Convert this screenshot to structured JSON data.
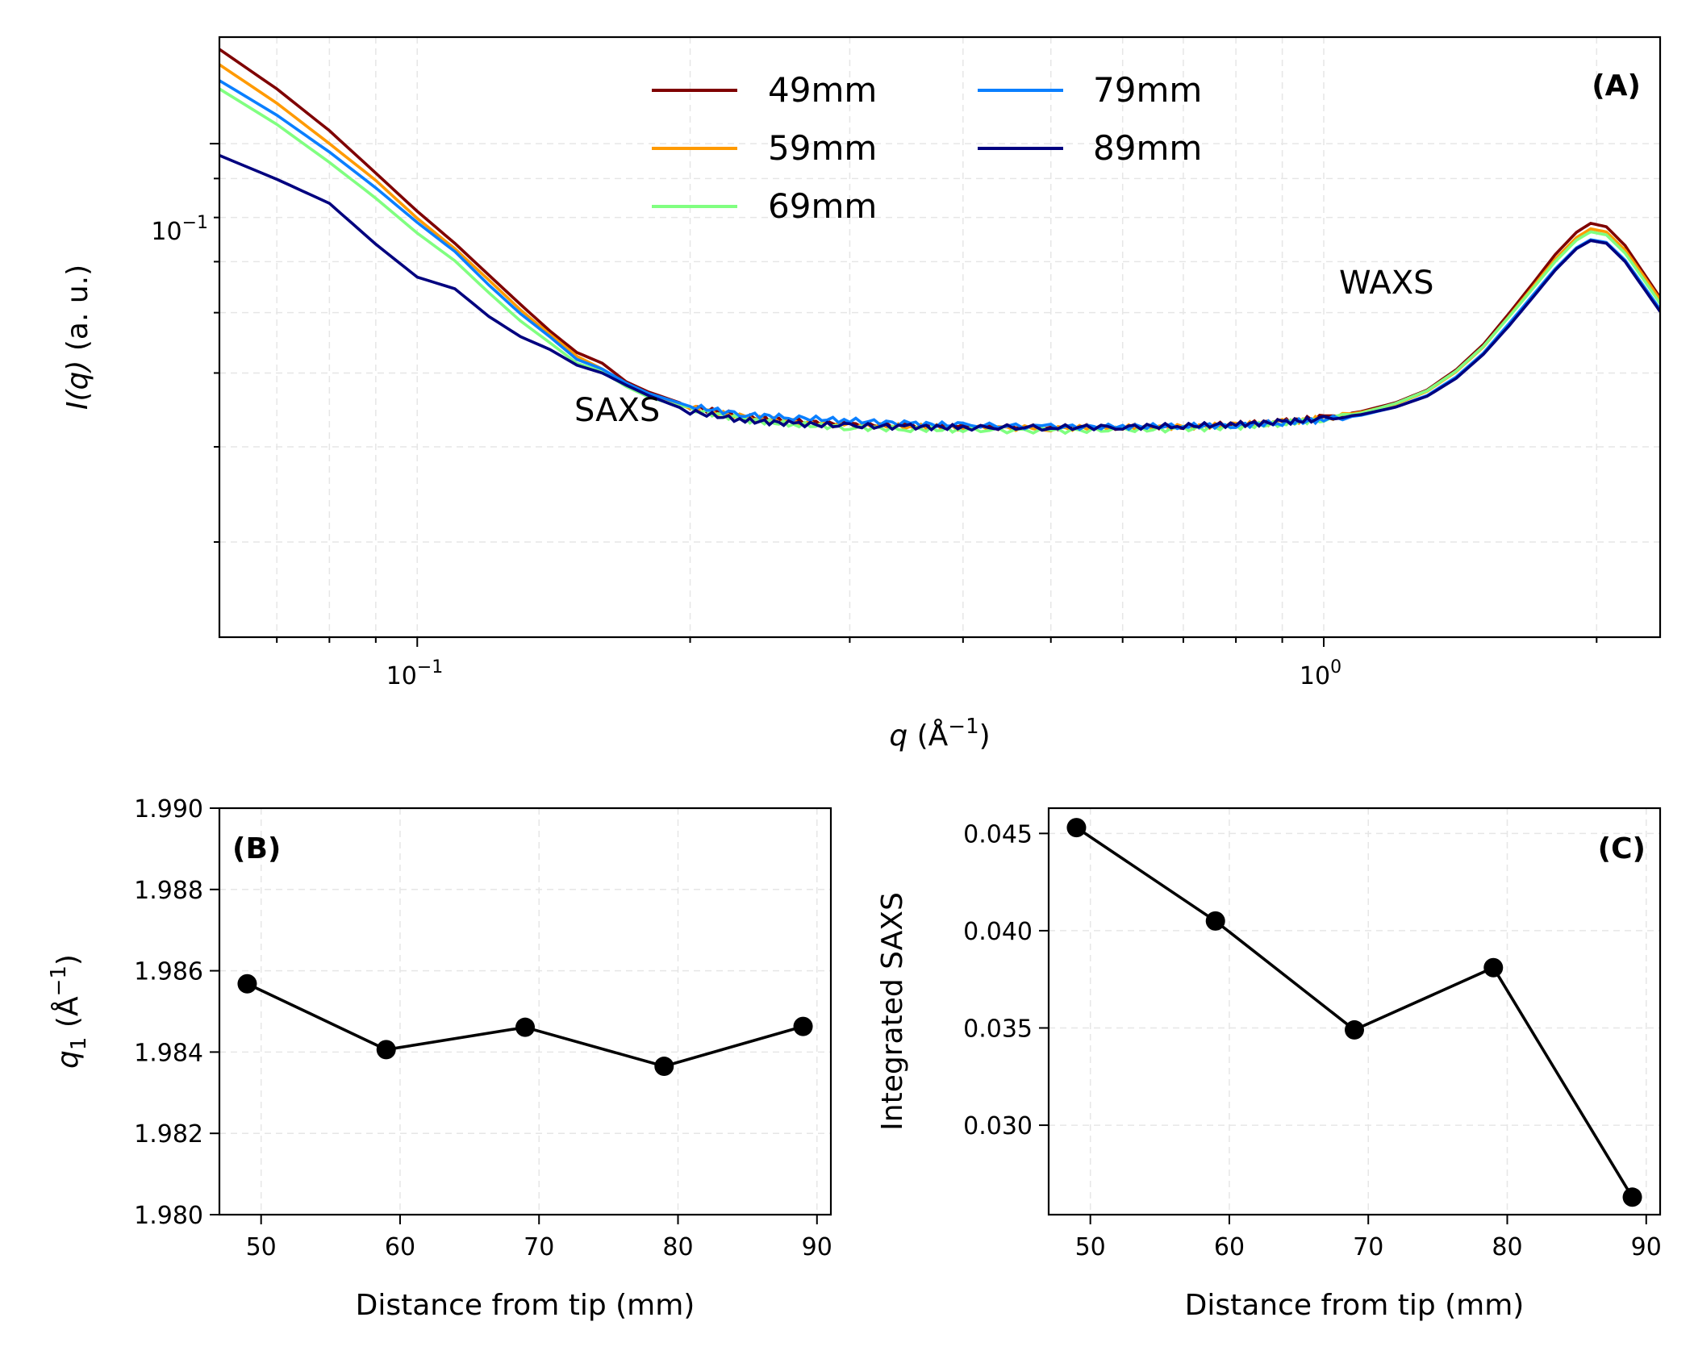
{
  "chart_data": [
    {
      "panel": "(A)",
      "type": "line",
      "xlabel_var": "q",
      "xlabel_unit": "(Å",
      "xlabel_unit_sup": "−1",
      "xlabel_close": ")",
      "ylabel_var": "I(q)",
      "ylabel_unit": "(a. u.)",
      "xscale": "log",
      "yscale": "log",
      "xlim": [
        0.0605,
        2.35
      ],
      "ylim": [
        0.0225,
        0.138
      ],
      "x_ticks": [
        {
          "base": "10",
          "exp": "−1",
          "value": 0.1
        },
        {
          "base": "10",
          "exp": "0",
          "value": 1.0
        }
      ],
      "y_ticks": [
        {
          "base": "10",
          "exp": "−1",
          "value": 0.1
        }
      ],
      "annotations": [
        {
          "text": "SAXS",
          "x": 0.145,
          "y": 0.0505
        },
        {
          "text": "WAXS",
          "x": 1.04,
          "y": 0.082
        }
      ],
      "grid": true,
      "legend": {
        "placement": "top-center",
        "columns": 2
      },
      "series": [
        {
          "name": "49mm",
          "color": "#7f0000",
          "x": [
            0.0605,
            0.07,
            0.08,
            0.09,
            0.1,
            0.11,
            0.12,
            0.13,
            0.14,
            0.15,
            0.16,
            0.17,
            0.18,
            0.2,
            0.23,
            0.26,
            0.3,
            0.35,
            0.4,
            0.5,
            0.6,
            0.7,
            0.8,
            0.9,
            1.0,
            1.1,
            1.2,
            1.3,
            1.4,
            1.5,
            1.6,
            1.7,
            1.8,
            1.9,
            1.97,
            2.05,
            2.15,
            2.25,
            2.35
          ],
          "y": [
            0.133,
            0.118,
            0.104,
            0.0915,
            0.0815,
            0.074,
            0.0672,
            0.0615,
            0.0568,
            0.0532,
            0.0515,
            0.0487,
            0.0472,
            0.0452,
            0.0438,
            0.0432,
            0.0428,
            0.0426,
            0.0425,
            0.0424,
            0.0425,
            0.0426,
            0.0428,
            0.0432,
            0.0437,
            0.0445,
            0.0457,
            0.0475,
            0.0505,
            0.0545,
            0.0598,
            0.0655,
            0.0715,
            0.0765,
            0.0786,
            0.0778,
            0.0735,
            0.0678,
            0.0628
          ]
        },
        {
          "name": "59mm",
          "color": "#ff9a00",
          "x": [
            0.0605,
            0.07,
            0.08,
            0.09,
            0.1,
            0.11,
            0.12,
            0.13,
            0.14,
            0.15,
            0.16,
            0.17,
            0.18,
            0.2,
            0.23,
            0.26,
            0.3,
            0.35,
            0.4,
            0.5,
            0.6,
            0.7,
            0.8,
            0.9,
            1.0,
            1.1,
            1.2,
            1.3,
            1.4,
            1.5,
            1.6,
            1.7,
            1.8,
            1.9,
            1.97,
            2.05,
            2.15,
            2.25,
            2.35
          ],
          "y": [
            0.127,
            0.113,
            0.1,
            0.0895,
            0.0798,
            0.0728,
            0.0662,
            0.0605,
            0.0562,
            0.0526,
            0.0506,
            0.0484,
            0.0468,
            0.045,
            0.0437,
            0.0431,
            0.0427,
            0.0425,
            0.0424,
            0.0423,
            0.0424,
            0.0425,
            0.0427,
            0.0431,
            0.0436,
            0.0444,
            0.0455,
            0.0473,
            0.0502,
            0.0541,
            0.0593,
            0.0648,
            0.0705,
            0.0753,
            0.0773,
            0.0766,
            0.0725,
            0.0672,
            0.0624
          ]
        },
        {
          "name": "69mm",
          "color": "#80ff80",
          "x": [
            0.0605,
            0.07,
            0.08,
            0.09,
            0.1,
            0.11,
            0.12,
            0.13,
            0.14,
            0.15,
            0.16,
            0.17,
            0.18,
            0.2,
            0.23,
            0.26,
            0.3,
            0.35,
            0.4,
            0.5,
            0.6,
            0.7,
            0.8,
            0.9,
            1.0,
            1.1,
            1.2,
            1.3,
            1.4,
            1.5,
            1.6,
            1.7,
            1.8,
            1.9,
            1.97,
            2.05,
            2.15,
            2.25,
            2.35
          ],
          "y": [
            0.118,
            0.106,
            0.0945,
            0.0848,
            0.0763,
            0.0702,
            0.0637,
            0.0585,
            0.0548,
            0.0515,
            0.0502,
            0.048,
            0.0465,
            0.0448,
            0.0434,
            0.0428,
            0.0424,
            0.0422,
            0.0421,
            0.042,
            0.0421,
            0.0422,
            0.0425,
            0.0429,
            0.0435,
            0.0443,
            0.0456,
            0.0474,
            0.0503,
            0.0542,
            0.0592,
            0.0645,
            0.07,
            0.0747,
            0.0766,
            0.0759,
            0.0718,
            0.0665,
            0.0617
          ]
        },
        {
          "name": "79mm",
          "color": "#0a7fff",
          "x": [
            0.0605,
            0.07,
            0.08,
            0.09,
            0.1,
            0.11,
            0.12,
            0.13,
            0.14,
            0.15,
            0.16,
            0.17,
            0.18,
            0.2,
            0.23,
            0.26,
            0.3,
            0.35,
            0.4,
            0.5,
            0.6,
            0.7,
            0.8,
            0.9,
            1.0,
            1.1,
            1.2,
            1.3,
            1.4,
            1.5,
            1.6,
            1.7,
            1.8,
            1.9,
            1.97,
            2.05,
            2.15,
            2.25,
            2.35
          ],
          "y": [
            0.121,
            0.109,
            0.0975,
            0.0875,
            0.0788,
            0.0722,
            0.0652,
            0.0598,
            0.0558,
            0.0521,
            0.0506,
            0.0485,
            0.047,
            0.0452,
            0.0441,
            0.0437,
            0.0433,
            0.0429,
            0.0427,
            0.0425,
            0.0425,
            0.0426,
            0.0427,
            0.043,
            0.0434,
            0.044,
            0.0451,
            0.0467,
            0.0494,
            0.0531,
            0.058,
            0.0632,
            0.0685,
            0.073,
            0.0748,
            0.0742,
            0.0703,
            0.0652,
            0.0606
          ]
        },
        {
          "name": "89mm",
          "color": "#00007f",
          "x": [
            0.0605,
            0.07,
            0.08,
            0.09,
            0.1,
            0.11,
            0.12,
            0.13,
            0.14,
            0.15,
            0.16,
            0.17,
            0.18,
            0.2,
            0.23,
            0.26,
            0.3,
            0.35,
            0.4,
            0.5,
            0.6,
            0.7,
            0.8,
            0.9,
            1.0,
            1.1,
            1.2,
            1.3,
            1.4,
            1.5,
            1.6,
            1.7,
            1.8,
            1.9,
            1.97,
            2.05,
            2.15,
            2.25,
            2.35
          ],
          "y": [
            0.0965,
            0.0898,
            0.0835,
            0.0738,
            0.0668,
            0.0645,
            0.0593,
            0.0558,
            0.0537,
            0.0512,
            0.05,
            0.0482,
            0.0467,
            0.0445,
            0.0433,
            0.0429,
            0.0426,
            0.0425,
            0.0424,
            0.0424,
            0.0425,
            0.0426,
            0.0428,
            0.0431,
            0.0435,
            0.0441,
            0.0451,
            0.0466,
            0.0492,
            0.0529,
            0.0576,
            0.0628,
            0.0682,
            0.0728,
            0.0746,
            0.074,
            0.07,
            0.0648,
            0.0602
          ]
        }
      ]
    },
    {
      "panel": "(B)",
      "type": "line",
      "xlabel": "Distance from tip (mm)",
      "ylabel_var": "q",
      "ylabel_sub": "1",
      "ylabel_unit": "(Å",
      "ylabel_unit_sup": "−1",
      "ylabel_close": ")",
      "xlim": [
        47,
        91
      ],
      "ylim": [
        1.98,
        1.99
      ],
      "x_ticks": [
        "50",
        "60",
        "70",
        "80",
        "90"
      ],
      "y_ticks": [
        "1.980",
        "1.982",
        "1.984",
        "1.986",
        "1.988",
        "1.990"
      ],
      "grid": true,
      "x": [
        49,
        59,
        69,
        79,
        89
      ],
      "y": [
        1.98568,
        1.98406,
        1.98461,
        1.98365,
        1.98463
      ]
    },
    {
      "panel": "(C)",
      "type": "line",
      "xlabel": "Distance from tip (mm)",
      "ylabel": "Integrated SAXS",
      "xlim": [
        47,
        91
      ],
      "ylim": [
        0.0254,
        0.0463
      ],
      "x_ticks": [
        "50",
        "60",
        "70",
        "80",
        "90"
      ],
      "y_ticks": [
        "0.030",
        "0.035",
        "0.040",
        "0.045"
      ],
      "grid": true,
      "x": [
        49,
        59,
        69,
        79,
        89
      ],
      "y": [
        0.0453,
        0.0405,
        0.0349,
        0.0381,
        0.0263
      ]
    }
  ]
}
